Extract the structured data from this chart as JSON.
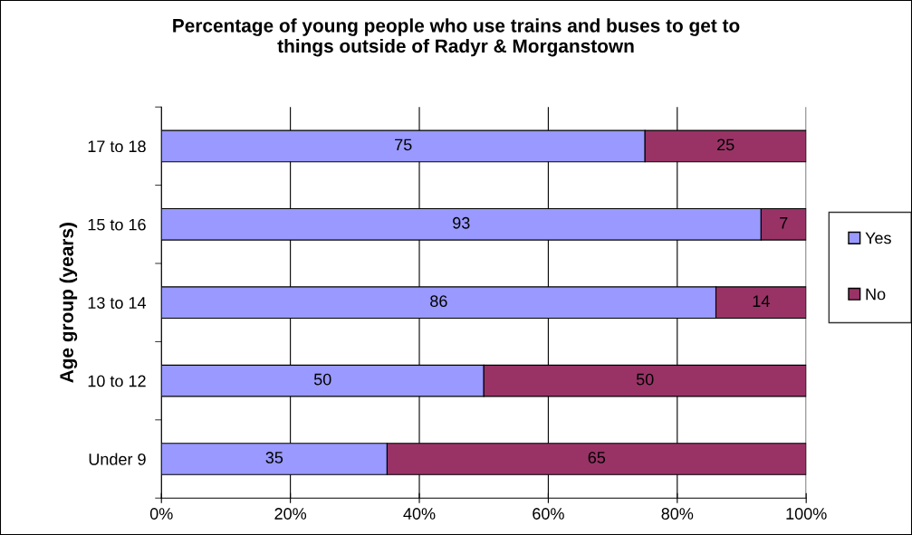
{
  "chart_data": {
    "type": "bar",
    "orientation": "horizontal",
    "stacked": true,
    "title": "Percentage of young people who use trains and buses to get to\nthings outside of Radyr & Morganstown",
    "ylabel": "Age group (years)",
    "categories": [
      "17 to 18",
      "15 to 16",
      "13 to 14",
      "10 to 12",
      "Under 9"
    ],
    "series": [
      {
        "name": "Yes",
        "color": "#9999ff",
        "values": [
          75,
          93,
          86,
          50,
          35
        ]
      },
      {
        "name": "No",
        "color": "#993366",
        "values": [
          25,
          7,
          14,
          50,
          65
        ]
      }
    ],
    "xlim": [
      0,
      100
    ],
    "xticks": [
      {
        "value": 0,
        "label": "0%"
      },
      {
        "value": 20,
        "label": "20%"
      },
      {
        "value": 40,
        "label": "40%"
      },
      {
        "value": 60,
        "label": "60%"
      },
      {
        "value": 80,
        "label": "80%"
      },
      {
        "value": 100,
        "label": "100%"
      }
    ],
    "grid": "x",
    "legend": "right",
    "data_labels": true
  }
}
